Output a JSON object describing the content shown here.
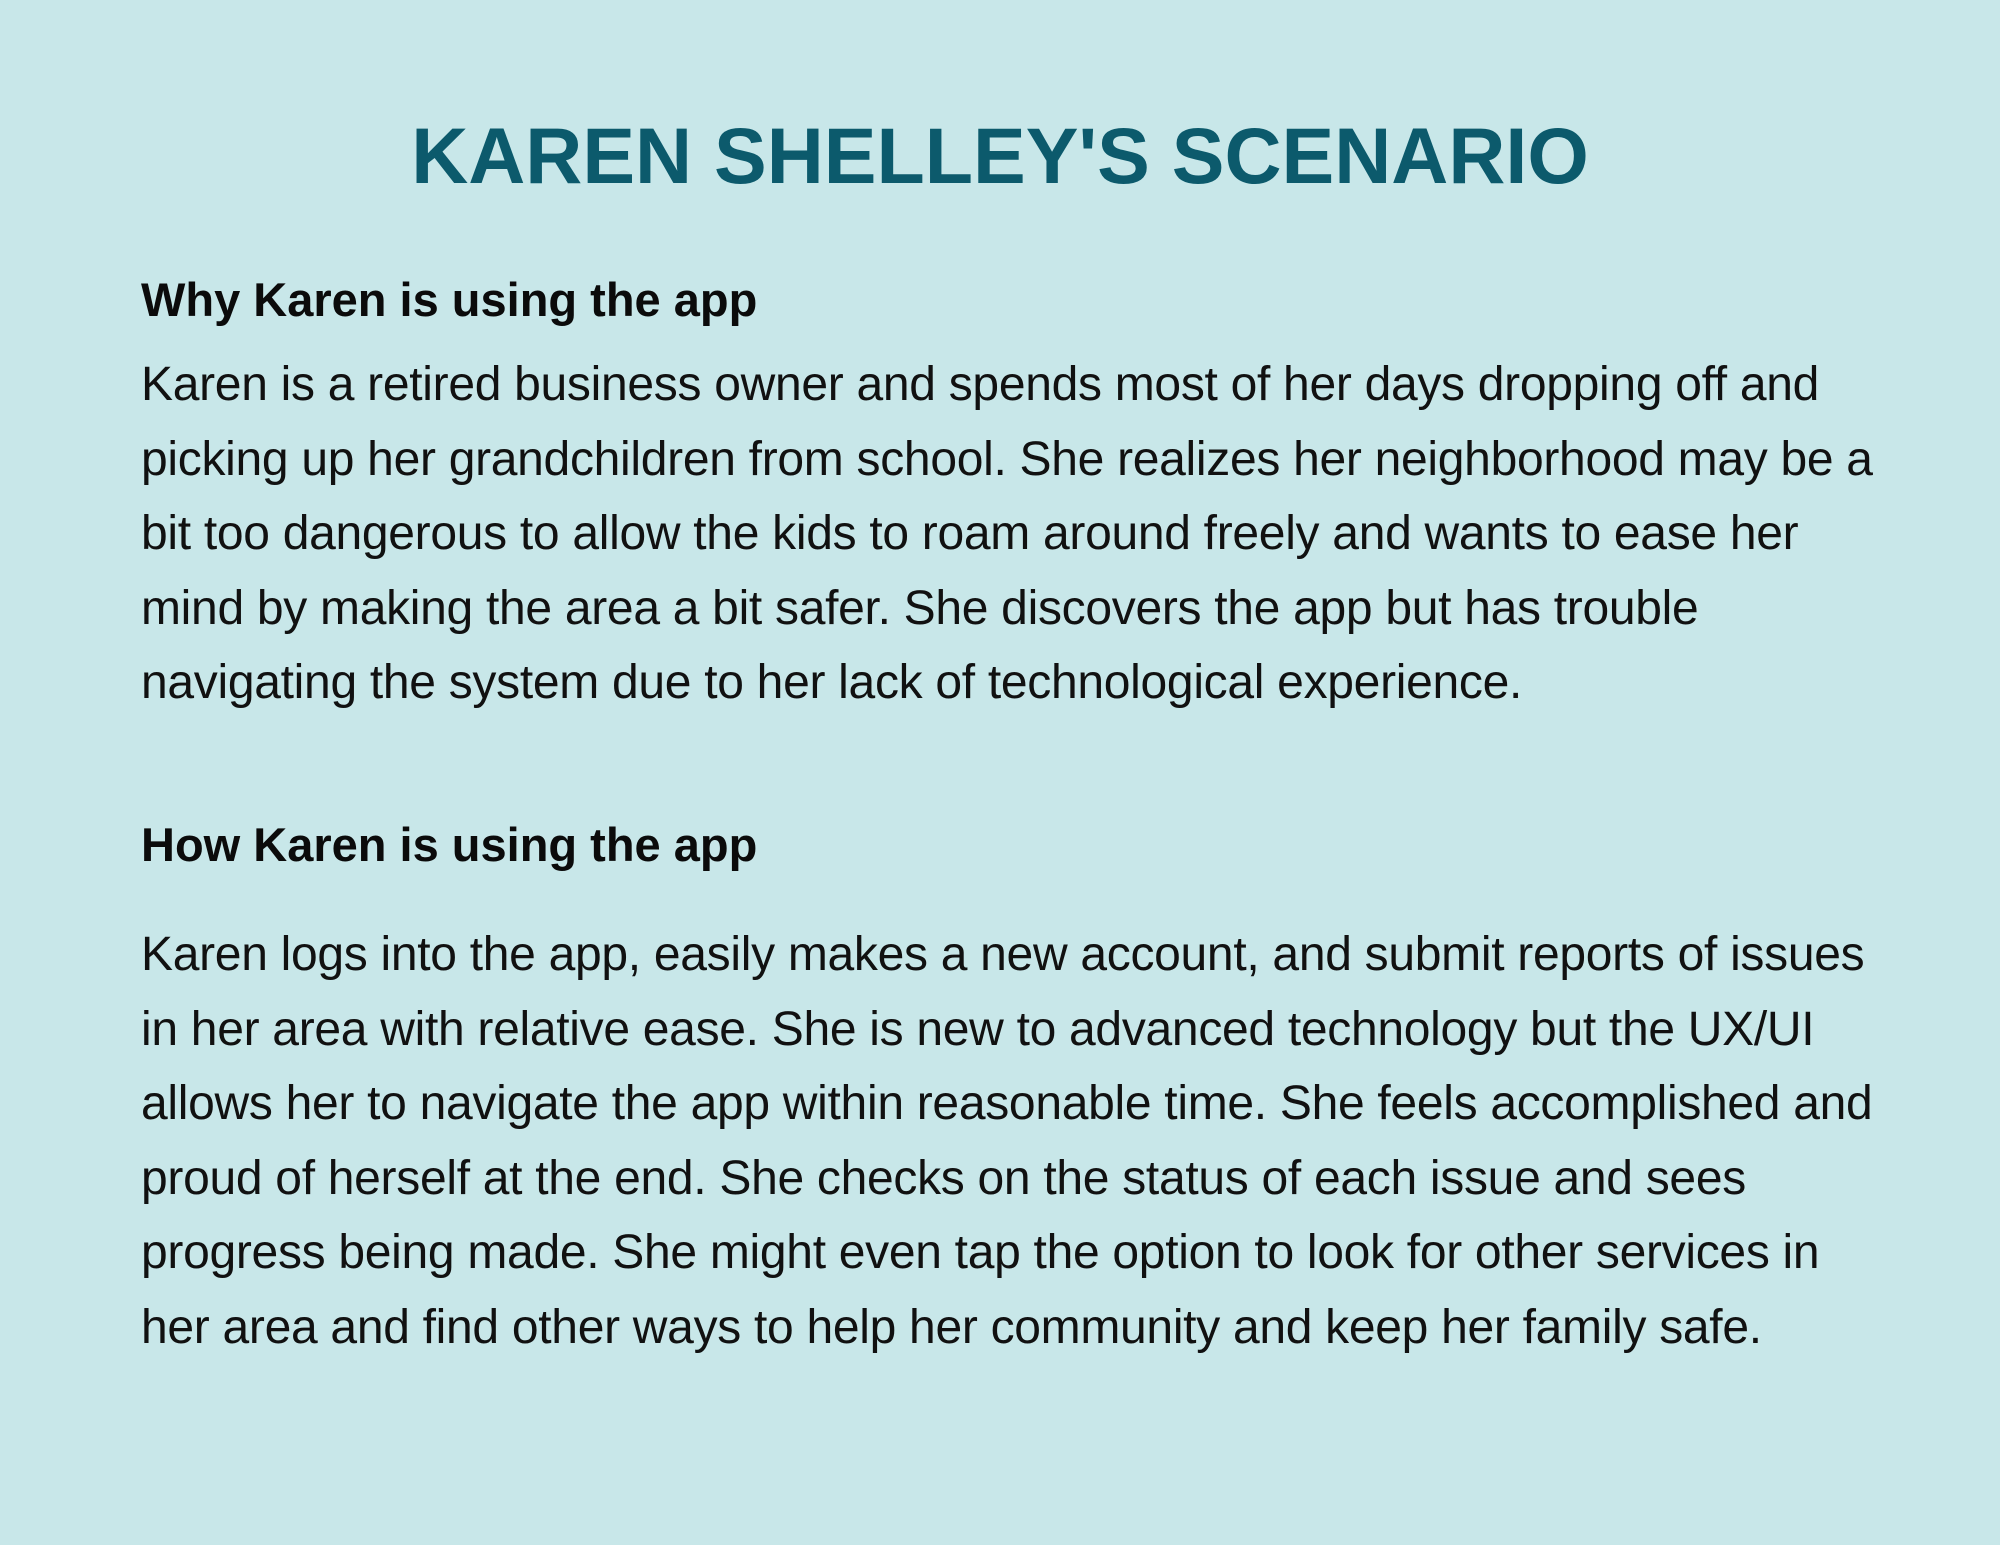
{
  "title": "KAREN SHELLEY'S SCENARIO",
  "sections": [
    {
      "heading": "Why Karen is using the app",
      "body": "Karen is a retired business owner and spends most of her days dropping off and picking up her grandchildren from school. She realizes her neighborhood may be a bit too dangerous to allow the kids to roam around freely and wants to ease her mind by making the area a bit safer. She discovers the app but has trouble navigating the system due to her lack of technological experience."
    },
    {
      "heading": "How Karen is using the app",
      "body": "Karen logs into the app, easily makes a new account, and submit reports of issues in her area with relative ease. She is new to advanced technology but the UX/UI allows her to navigate the app within reasonable time. She feels accomplished and proud of herself at the end. She checks on the status of each issue and sees progress being made. She might even tap the option to look for other services in her area and find other ways to help her community and keep her family safe."
    }
  ],
  "colors": {
    "background": "#c8e7e9",
    "title": "#0c5a6c",
    "text": "#111111"
  }
}
